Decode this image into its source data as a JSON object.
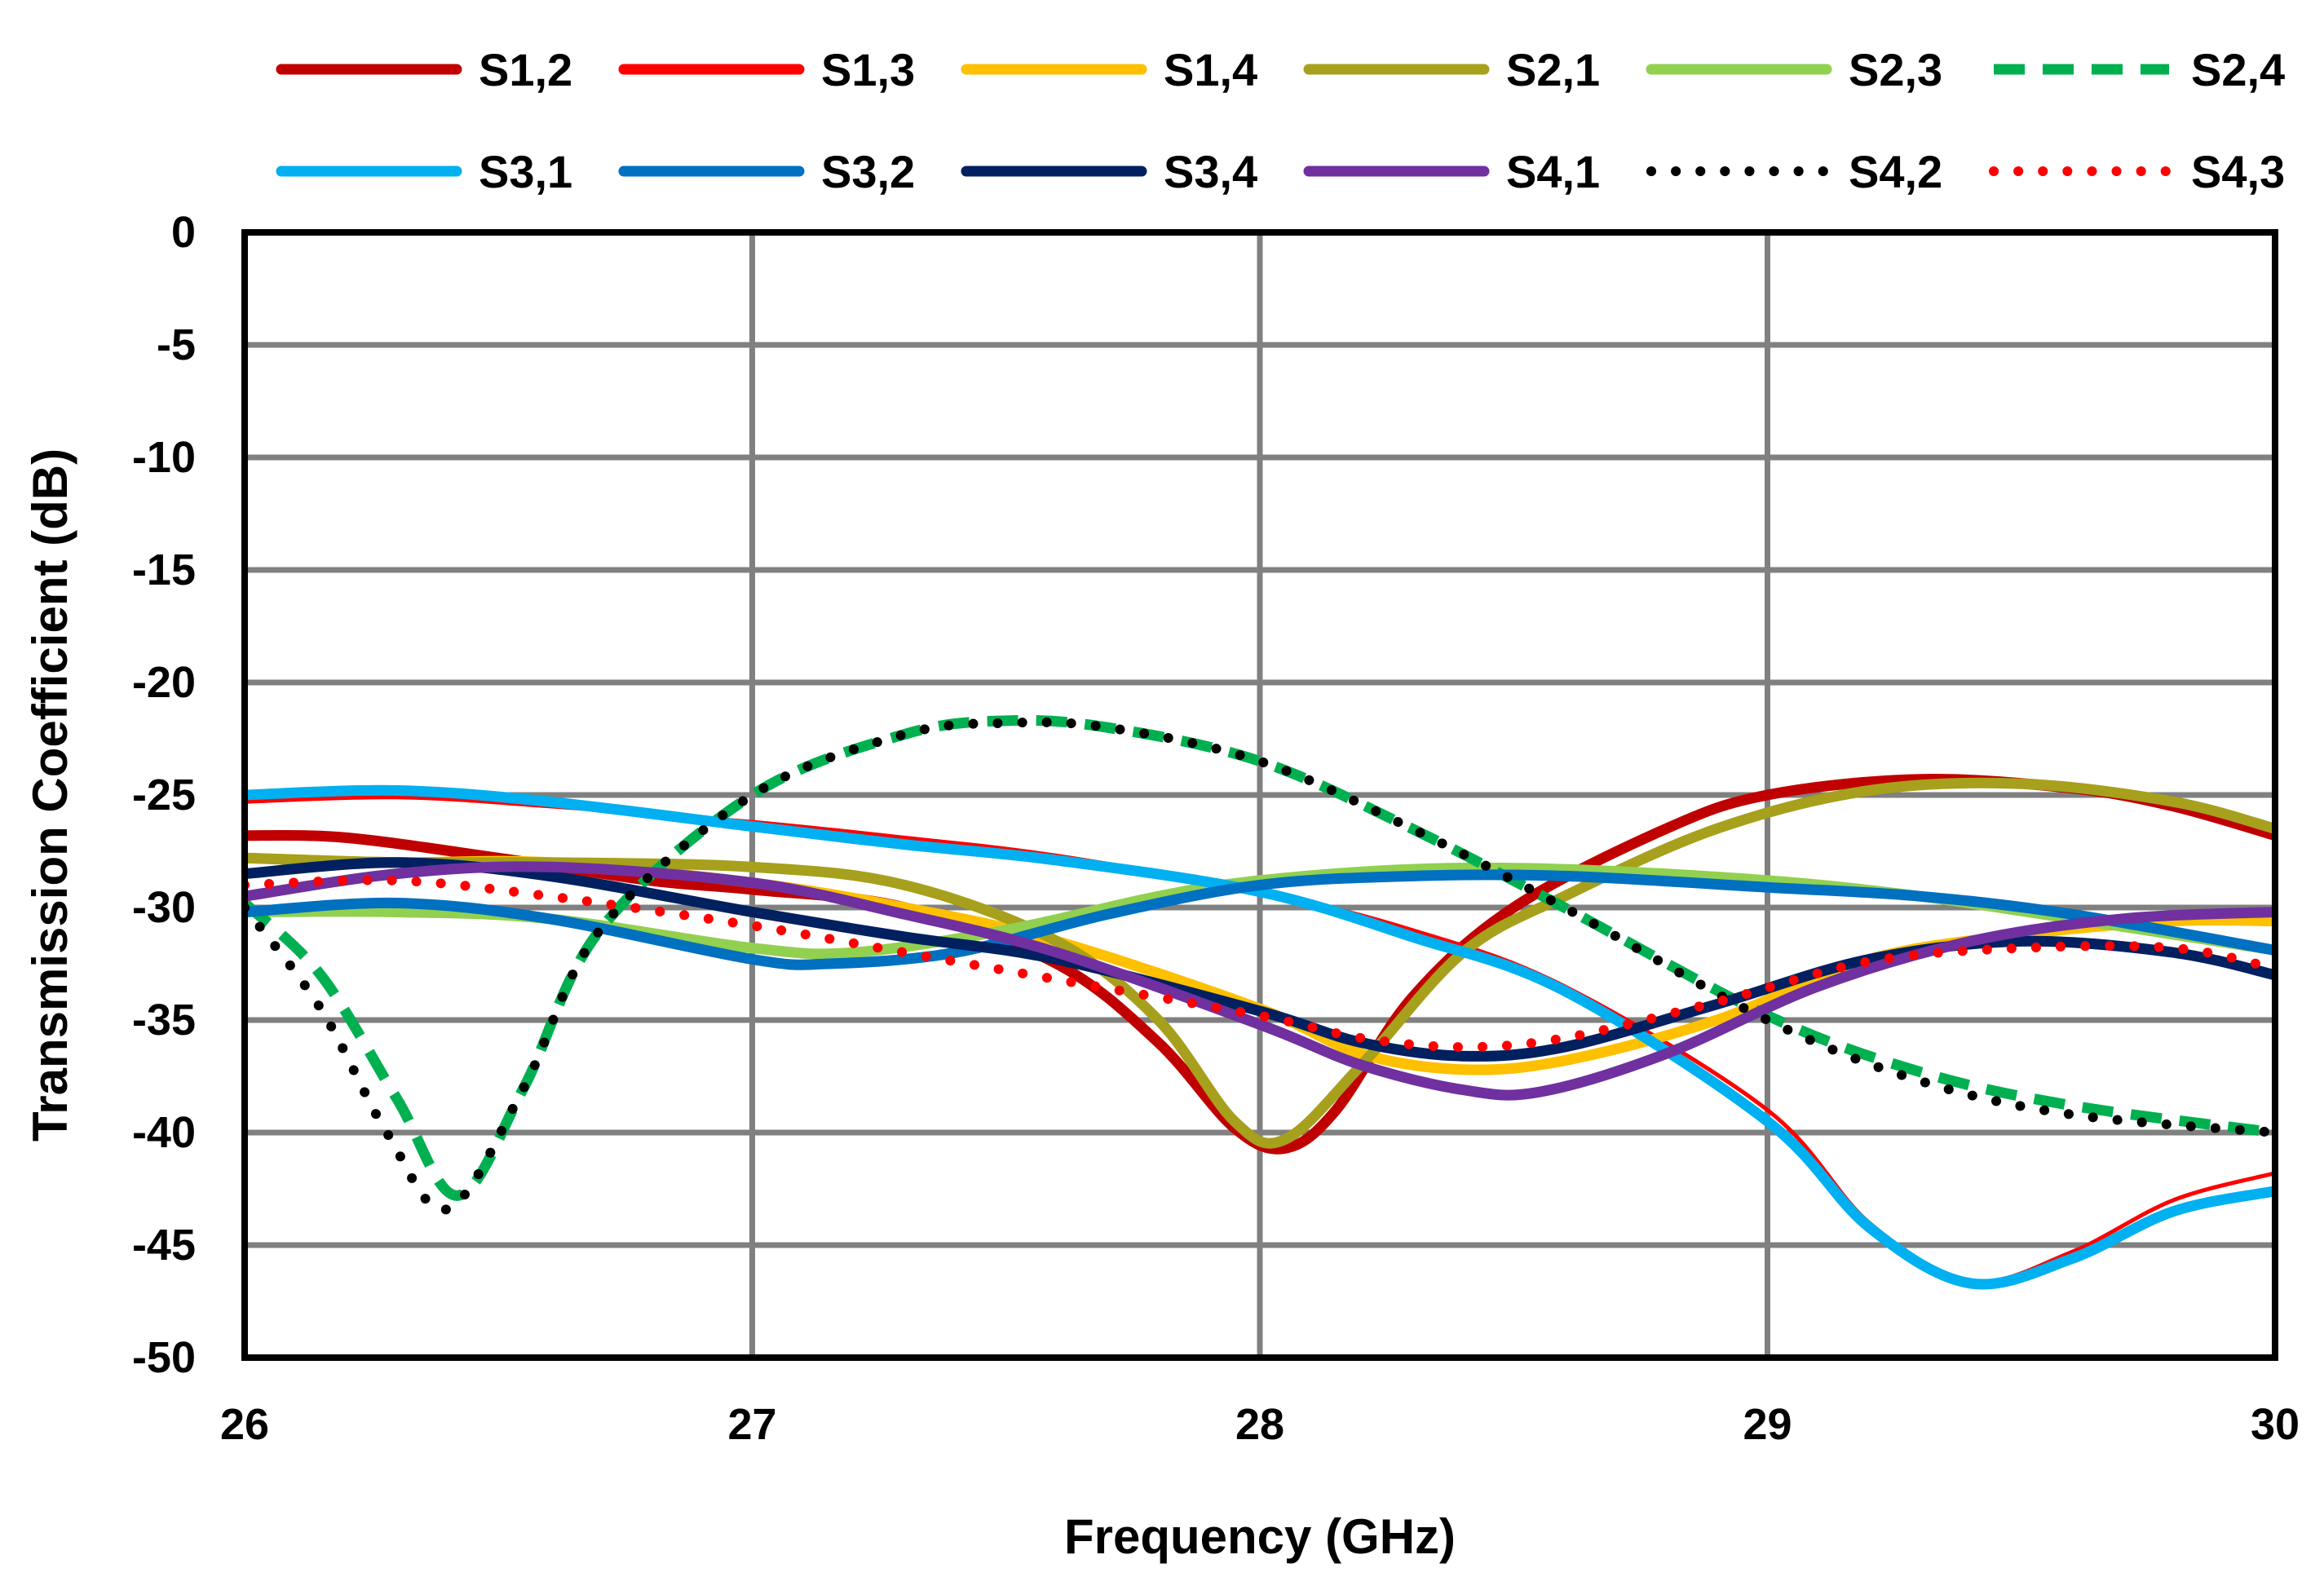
{
  "chart_data": {
    "type": "line",
    "title": "",
    "xlabel": "Frequency (GHz)",
    "ylabel": "Transmission Coefficient (dB)",
    "xlim": [
      26,
      30
    ],
    "ylim": [
      -50,
      0
    ],
    "xticks": [
      "26",
      "27",
      "28",
      "29",
      "30"
    ],
    "yticks": [
      "0",
      "-5",
      "-10",
      "-15",
      "-20",
      "-25",
      "-30",
      "-35",
      "-40",
      "-45",
      "-50"
    ],
    "grid": true,
    "legend_position": "top",
    "series": [
      {
        "name": "S1,2",
        "color": "#C00000",
        "dash": "solid",
        "width": "thick",
        "x": [
          26,
          26.2,
          26.5,
          26.8,
          27,
          27.3,
          27.6,
          27.8,
          27.95,
          28.05,
          28.15,
          28.3,
          28.5,
          28.8,
          29,
          29.3,
          29.6,
          29.8,
          30
        ],
        "y": [
          -26.8,
          -26.9,
          -27.8,
          -28.8,
          -29.2,
          -30,
          -32.5,
          -36,
          -39.8,
          -40.7,
          -39,
          -34,
          -30,
          -26.5,
          -25,
          -24.3,
          -24.7,
          -25.5,
          -26.8
        ]
      },
      {
        "name": "S1,3",
        "color": "#FF0000",
        "dash": "solid",
        "width": "thin",
        "x": [
          26,
          26.3,
          26.6,
          27,
          27.3,
          27.6,
          28,
          28.3,
          28.6,
          29,
          29.2,
          29.4,
          29.6,
          29.8,
          30
        ],
        "y": [
          -25.3,
          -25.1,
          -25.5,
          -26.2,
          -26.9,
          -27.7,
          -29.3,
          -31,
          -33.5,
          -39,
          -44,
          -46.6,
          -45.3,
          -43,
          -41.8
        ]
      },
      {
        "name": "S1,4",
        "color": "#FFC000",
        "dash": "solid",
        "width": "thick",
        "x": [
          26,
          26.3,
          26.6,
          27,
          27.3,
          27.6,
          28,
          28.2,
          28.4,
          28.6,
          28.9,
          29.2,
          29.5,
          29.8,
          30
        ],
        "y": [
          -27.8,
          -28,
          -28,
          -28.9,
          -30,
          -31.5,
          -34.5,
          -36.5,
          -37.2,
          -36.8,
          -35,
          -32.3,
          -31.2,
          -30.6,
          -30.6
        ]
      },
      {
        "name": "S2,1",
        "color": "#A6A01C",
        "dash": "solid",
        "width": "thick",
        "x": [
          26,
          26.3,
          26.6,
          27,
          27.3,
          27.6,
          27.8,
          27.95,
          28.05,
          28.2,
          28.4,
          28.6,
          28.9,
          29.2,
          29.5,
          29.8,
          30
        ],
        "y": [
          -27.8,
          -28,
          -28,
          -28.2,
          -29,
          -31.5,
          -35,
          -39.5,
          -40.3,
          -37,
          -32,
          -29.5,
          -26.5,
          -24.8,
          -24.5,
          -25.3,
          -26.5
        ]
      },
      {
        "name": "S2,3",
        "color": "#92D050",
        "dash": "solid",
        "width": "thick",
        "x": [
          26,
          26.3,
          26.6,
          27,
          27.2,
          27.5,
          27.8,
          28,
          28.3,
          28.6,
          29,
          29.3,
          29.6,
          30
        ],
        "y": [
          -30.2,
          -30.2,
          -30.5,
          -31.8,
          -32,
          -31,
          -29.5,
          -28.8,
          -28.3,
          -28.3,
          -28.8,
          -29.5,
          -30.5,
          -31.9
        ]
      },
      {
        "name": "S2,4",
        "color": "#00B050",
        "dash": "dashed",
        "width": "thick",
        "x": [
          26,
          26.15,
          26.3,
          26.42,
          26.55,
          26.7,
          27,
          27.3,
          27.5,
          27.7,
          28,
          28.3,
          28.6,
          29,
          29.3,
          29.6,
          30
        ],
        "y": [
          -29.8,
          -33,
          -38.5,
          -42.8,
          -38,
          -31,
          -25,
          -22.3,
          -21.7,
          -22,
          -23.5,
          -26.5,
          -30,
          -34.8,
          -37.3,
          -38.8,
          -40
        ]
      },
      {
        "name": "S3,1",
        "color": "#00B0F0",
        "dash": "solid",
        "width": "thick",
        "x": [
          26,
          26.3,
          26.6,
          27,
          27.3,
          27.6,
          28,
          28.3,
          28.6,
          29,
          29.2,
          29.4,
          29.6,
          29.8,
          30
        ],
        "y": [
          -25,
          -24.8,
          -25.3,
          -26.4,
          -27.2,
          -27.9,
          -29.3,
          -31.3,
          -33.7,
          -39.5,
          -44.2,
          -46.7,
          -45.6,
          -43.5,
          -42.6
        ]
      },
      {
        "name": "S3,2",
        "color": "#0070C0",
        "dash": "solid",
        "width": "thick",
        "x": [
          26,
          26.3,
          26.6,
          27,
          27.15,
          27.4,
          27.7,
          28,
          28.3,
          28.6,
          29,
          29.3,
          29.6,
          30
        ],
        "y": [
          -30.2,
          -29.8,
          -30.5,
          -32.3,
          -32.5,
          -32,
          -30.3,
          -29,
          -28.6,
          -28.6,
          -29.1,
          -29.5,
          -30.3,
          -31.9
        ]
      },
      {
        "name": "S3,4",
        "color": "#002060",
        "dash": "solid",
        "width": "thick",
        "x": [
          26,
          26.3,
          26.6,
          27,
          27.3,
          27.6,
          28,
          28.2,
          28.4,
          28.6,
          28.9,
          29.2,
          29.5,
          29.8,
          30
        ],
        "y": [
          -28.5,
          -28,
          -28.6,
          -30.2,
          -31.3,
          -32.3,
          -34.6,
          -36,
          -36.6,
          -36.2,
          -34.3,
          -32.3,
          -31.5,
          -32,
          -33
        ]
      },
      {
        "name": "S4,1",
        "color": "#7030A0",
        "dash": "solid",
        "width": "thick",
        "x": [
          26,
          26.3,
          26.6,
          27,
          27.3,
          27.6,
          28,
          28.2,
          28.4,
          28.55,
          28.8,
          29.1,
          29.4,
          29.7,
          30
        ],
        "y": [
          -29.5,
          -28.5,
          -28.2,
          -28.9,
          -30.3,
          -32,
          -35.2,
          -37,
          -38.1,
          -38.2,
          -36.5,
          -33.5,
          -31.5,
          -30.5,
          -30.2
        ]
      },
      {
        "name": "S4,2",
        "color": "#000000",
        "dash": "dotted",
        "width": "thick",
        "x": [
          26,
          26.15,
          26.28,
          26.4,
          26.55,
          26.7,
          27,
          27.3,
          27.5,
          27.7,
          28,
          28.3,
          28.6,
          29,
          29.3,
          29.6,
          30
        ],
        "y": [
          -30,
          -34.5,
          -40,
          -43.4,
          -38,
          -31,
          -25,
          -22.3,
          -21.8,
          -22,
          -23.5,
          -26.5,
          -30,
          -35,
          -37.7,
          -39.2,
          -40
        ]
      },
      {
        "name": "S4,3",
        "color": "#FF0000",
        "dash": "dotted",
        "width": "thick",
        "x": [
          26,
          26.3,
          26.6,
          27,
          27.3,
          27.6,
          28,
          28.2,
          28.4,
          28.6,
          28.9,
          29.2,
          29.5,
          29.8,
          30
        ],
        "y": [
          -29,
          -28.8,
          -29.5,
          -30.8,
          -32,
          -33.2,
          -34.8,
          -35.8,
          -36.2,
          -35.8,
          -34.2,
          -32.4,
          -31.8,
          -31.8,
          -32.7
        ]
      }
    ]
  }
}
